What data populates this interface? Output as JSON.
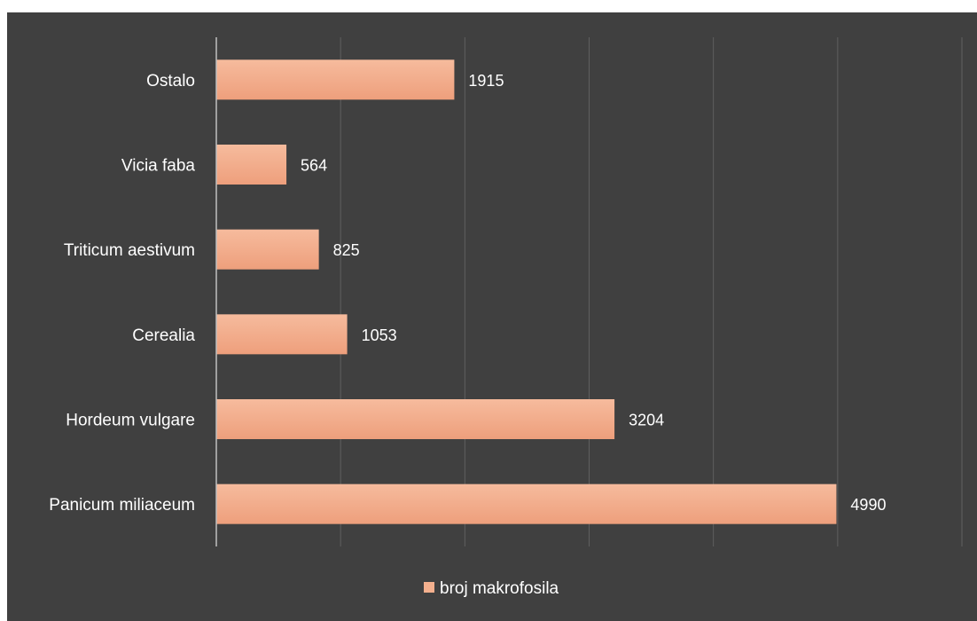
{
  "chart_data": {
    "type": "bar",
    "orientation": "horizontal",
    "categories": [
      "Panicum miliaceum",
      "Hordeum vulgare",
      "Cerealia",
      "Triticum aestivum",
      "Vicia faba",
      "Ostalo"
    ],
    "series": [
      {
        "name": "broj makrofosila",
        "values": [
          4990,
          3204,
          1053,
          825,
          564,
          1915
        ]
      }
    ],
    "title": "",
    "xlabel": "",
    "ylabel": "",
    "xlim": [
      0,
      6000
    ],
    "grid": true,
    "legend": "bottom",
    "data_labels": true,
    "colors": {
      "background": "#404040",
      "bar": "#f4b08e",
      "gridline": "#5f5f5f",
      "axis": "#bfbfbf",
      "text": "#ffffff"
    }
  }
}
